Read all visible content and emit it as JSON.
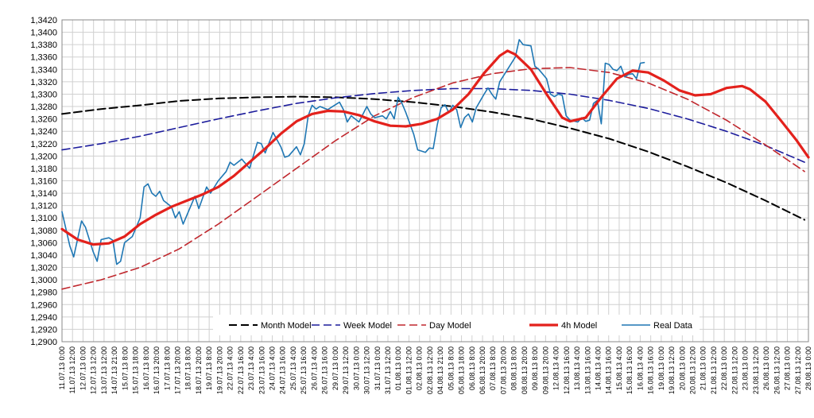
{
  "chart_data": {
    "type": "line",
    "title": "",
    "xlabel": "",
    "ylabel": "",
    "ylim": [
      1.29,
      1.342
    ],
    "grid": true,
    "legend_position": "bottom",
    "y_ticks": [
      "1,2900",
      "1,2920",
      "1,2940",
      "1,2960",
      "1,2980",
      "1,3000",
      "1,3020",
      "1,3040",
      "1,3060",
      "1,3080",
      "1,3100",
      "1,3120",
      "1,3140",
      "1,3160",
      "1,3180",
      "1,3200",
      "1,3220",
      "1,3240",
      "1,3260",
      "1,3280",
      "1,3300",
      "1,3320",
      "1,3340",
      "1,3360",
      "1,3380",
      "1,3400",
      "1,3420"
    ],
    "x_ticks": [
      "11.07.13 0:00",
      "11.07.13 12:00",
      "12.07.13 0:00",
      "12.07.13 12:00",
      "13.07.13 12:00",
      "14.07.13 21:00",
      "15.07.13 8:00",
      "15.07.13 18:00",
      "16.07.13 8:00",
      "16.07.13 20:00",
      "17.07.13 8:00",
      "17.07.13 20:00",
      "18.07.13 8:00",
      "18.07.13 20:00",
      "19.07.13 8:00",
      "19.07.13 20:00",
      "22.07.13 4:00",
      "22.07.13 16:00",
      "23.07.13 4:00",
      "23.07.13 16:00",
      "24.07.13 4:00",
      "24.07.13 16:00",
      "25.07.13 4:00",
      "25.07.13 16:00",
      "26.07.13 4:00",
      "26.07.13 16:00",
      "29.07.13 0:00",
      "29.07.13 12:00",
      "30.07.13 0:00",
      "30.07.13 12:00",
      "31.07.13 0:00",
      "31.07.13 12:00",
      "01.08.13 0:00",
      "01.08.13 12:00",
      "02.08.13 0:00",
      "02.08.13 12:00",
      "04.08.13 21:00",
      "05.08.13 8:00",
      "05.08.13 18:00",
      "06.08.13 8:00",
      "06.08.13 20:00",
      "07.08.13 8:00",
      "07.08.13 20:00",
      "08.08.13 8:00",
      "08.08.13 20:00",
      "09.08.13 8:00",
      "09.08.13 20:00",
      "12.08.13 4:00",
      "12.08.13 16:00",
      "13.08.13 4:00",
      "13.08.13 16:00",
      "14.08.13 4:00",
      "14.08.13 16:00",
      "15.08.13 4:00",
      "15.08.13 16:00",
      "16.08.13 4:00",
      "16.08.13 16:00",
      "19.08.13 0:00",
      "19.08.13 12:00",
      "20.08.13 0:00",
      "20.08.13 12:00",
      "21.08.13 0:00",
      "21.08.13 12:00",
      "22.08.13 0:00",
      "22.08.13 12:00",
      "23.08.13 0:00",
      "23.08.13 12:00",
      "26.08.13 0:00",
      "26.08.13 12:00",
      "27.08.13 0:00",
      "27.08.13 12:00",
      "28.08.13 0:00"
    ],
    "series": [
      {
        "name": "Month Model",
        "color": "#000000",
        "dash": "10,5",
        "width": 2,
        "points": [
          [
            0,
            1.3268
          ],
          [
            5,
            1.3276
          ],
          [
            10,
            1.3282
          ],
          [
            15,
            1.3289
          ],
          [
            20,
            1.3293
          ],
          [
            25,
            1.3295
          ],
          [
            30,
            1.3296
          ],
          [
            35,
            1.3295
          ],
          [
            40,
            1.3292
          ],
          [
            45,
            1.3287
          ],
          [
            50,
            1.328
          ],
          [
            55,
            1.3271
          ],
          [
            60,
            1.326
          ],
          [
            65,
            1.3245
          ],
          [
            70,
            1.3228
          ],
          [
            75,
            1.3207
          ],
          [
            80,
            1.3183
          ],
          [
            85,
            1.3157
          ],
          [
            90,
            1.3128
          ],
          [
            95,
            1.3097
          ]
        ]
      },
      {
        "name": "Week Model",
        "color": "#1c1c9c",
        "dash": "10,5",
        "width": 1.6,
        "points": [
          [
            0,
            1.321
          ],
          [
            5,
            1.322
          ],
          [
            10,
            1.3232
          ],
          [
            15,
            1.3246
          ],
          [
            20,
            1.326
          ],
          [
            25,
            1.3273
          ],
          [
            30,
            1.3285
          ],
          [
            35,
            1.3294
          ],
          [
            40,
            1.3301
          ],
          [
            45,
            1.3306
          ],
          [
            50,
            1.3309
          ],
          [
            55,
            1.3309
          ],
          [
            60,
            1.3306
          ],
          [
            65,
            1.33
          ],
          [
            70,
            1.329
          ],
          [
            75,
            1.3277
          ],
          [
            80,
            1.326
          ],
          [
            85,
            1.324
          ],
          [
            90,
            1.3217
          ],
          [
            95,
            1.319
          ]
        ]
      },
      {
        "name": "Day Model",
        "color": "#c0272d",
        "dash": "10,5",
        "width": 1.6,
        "points": [
          [
            0,
            1.2985
          ],
          [
            5,
            1.3
          ],
          [
            10,
            1.302
          ],
          [
            15,
            1.305
          ],
          [
            20,
            1.309
          ],
          [
            25,
            1.3135
          ],
          [
            30,
            1.318
          ],
          [
            35,
            1.3225
          ],
          [
            40,
            1.3265
          ],
          [
            45,
            1.3295
          ],
          [
            50,
            1.3318
          ],
          [
            55,
            1.3333
          ],
          [
            60,
            1.3341
          ],
          [
            65,
            1.3343
          ],
          [
            70,
            1.3335
          ],
          [
            75,
            1.3318
          ],
          [
            80,
            1.3292
          ],
          [
            85,
            1.3258
          ],
          [
            90,
            1.3218
          ],
          [
            95,
            1.3175
          ]
        ]
      },
      {
        "name": "4h Model",
        "color": "#e3211c",
        "dash": "",
        "width": 3.2,
        "points": [
          [
            0,
            1.3082
          ],
          [
            2,
            1.3065
          ],
          [
            4,
            1.3057
          ],
          [
            6,
            1.3059
          ],
          [
            8,
            1.307
          ],
          [
            10,
            1.309
          ],
          [
            12,
            1.3105
          ],
          [
            14,
            1.3118
          ],
          [
            16,
            1.3128
          ],
          [
            18,
            1.3138
          ],
          [
            20,
            1.315
          ],
          [
            22,
            1.3168
          ],
          [
            24,
            1.319
          ],
          [
            26,
            1.3212
          ],
          [
            28,
            1.3236
          ],
          [
            30,
            1.3256
          ],
          [
            32,
            1.3268
          ],
          [
            34,
            1.3273
          ],
          [
            36,
            1.3272
          ],
          [
            38,
            1.3266
          ],
          [
            40,
            1.3256
          ],
          [
            42,
            1.3249
          ],
          [
            44,
            1.3248
          ],
          [
            46,
            1.3252
          ],
          [
            48,
            1.326
          ],
          [
            50,
            1.3275
          ],
          [
            52,
            1.33
          ],
          [
            54,
            1.3334
          ],
          [
            56,
            1.3362
          ],
          [
            57,
            1.337
          ],
          [
            58,
            1.3364
          ],
          [
            60,
            1.334
          ],
          [
            62,
            1.33
          ],
          [
            64,
            1.3262
          ],
          [
            65,
            1.3256
          ],
          [
            67,
            1.3262
          ],
          [
            69,
            1.3295
          ],
          [
            71,
            1.3325
          ],
          [
            73,
            1.3338
          ],
          [
            75,
            1.3335
          ],
          [
            77,
            1.3322
          ],
          [
            79,
            1.3306
          ],
          [
            81,
            1.3298
          ],
          [
            83,
            1.33
          ],
          [
            85,
            1.331
          ],
          [
            87,
            1.3313
          ],
          [
            88,
            1.3308
          ],
          [
            90,
            1.3288
          ],
          [
            92,
            1.3257
          ],
          [
            94,
            1.3225
          ],
          [
            95.5,
            1.3198
          ]
        ]
      },
      {
        "name": "Real Data",
        "color": "#1f77b4",
        "dash": "",
        "width": 1.6,
        "points": [
          [
            0,
            1.311
          ],
          [
            1,
            1.3055
          ],
          [
            1.5,
            1.3037
          ],
          [
            2.5,
            1.3095
          ],
          [
            3,
            1.3085
          ],
          [
            4,
            1.3045
          ],
          [
            4.5,
            1.303
          ],
          [
            5,
            1.3065
          ],
          [
            6,
            1.3068
          ],
          [
            6.5,
            1.3064
          ],
          [
            7,
            1.3025
          ],
          [
            7.5,
            1.303
          ],
          [
            8,
            1.306
          ],
          [
            9,
            1.307
          ],
          [
            10,
            1.31
          ],
          [
            10.5,
            1.315
          ],
          [
            11,
            1.3155
          ],
          [
            11.5,
            1.314
          ],
          [
            12,
            1.3135
          ],
          [
            12.5,
            1.3143
          ],
          [
            13,
            1.3128
          ],
          [
            14,
            1.3118
          ],
          [
            14.5,
            1.31
          ],
          [
            15,
            1.311
          ],
          [
            15.5,
            1.309
          ],
          [
            16,
            1.3105
          ],
          [
            17,
            1.3135
          ],
          [
            17.5,
            1.3115
          ],
          [
            18.5,
            1.315
          ],
          [
            19,
            1.314
          ],
          [
            20,
            1.316
          ],
          [
            21,
            1.3175
          ],
          [
            21.5,
            1.319
          ],
          [
            22,
            1.3185
          ],
          [
            23,
            1.3195
          ],
          [
            24,
            1.318
          ],
          [
            25,
            1.3222
          ],
          [
            25.5,
            1.322
          ],
          [
            26,
            1.3205
          ],
          [
            27,
            1.3238
          ],
          [
            28,
            1.3215
          ],
          [
            28.5,
            1.3198
          ],
          [
            29,
            1.32
          ],
          [
            30,
            1.3215
          ],
          [
            30.5,
            1.3202
          ],
          [
            31,
            1.322
          ],
          [
            31.5,
            1.3265
          ],
          [
            32,
            1.3282
          ],
          [
            32.5,
            1.3276
          ],
          [
            33,
            1.328
          ],
          [
            34,
            1.3275
          ],
          [
            35,
            1.3283
          ],
          [
            35.5,
            1.3287
          ],
          [
            36,
            1.3275
          ],
          [
            36.5,
            1.3255
          ],
          [
            37,
            1.3265
          ],
          [
            38,
            1.3255
          ],
          [
            39,
            1.328
          ],
          [
            39.5,
            1.3268
          ],
          [
            40,
            1.3262
          ],
          [
            41,
            1.3265
          ],
          [
            41.5,
            1.326
          ],
          [
            42,
            1.3272
          ],
          [
            42.5,
            1.326
          ],
          [
            43,
            1.3295
          ],
          [
            43.5,
            1.3285
          ],
          [
            44,
            1.327
          ],
          [
            45,
            1.3235
          ],
          [
            45.5,
            1.321
          ],
          [
            46,
            1.3208
          ],
          [
            46.5,
            1.3206
          ],
          [
            47,
            1.3213
          ],
          [
            47.5,
            1.3212
          ],
          [
            48,
            1.325
          ],
          [
            48.5,
            1.3278
          ],
          [
            49,
            1.3283
          ],
          [
            49.5,
            1.327
          ],
          [
            50,
            1.3282
          ],
          [
            50.5,
            1.3275
          ],
          [
            51,
            1.3246
          ],
          [
            51.5,
            1.3262
          ],
          [
            52,
            1.3268
          ],
          [
            52.5,
            1.3255
          ],
          [
            53,
            1.3278
          ],
          [
            54,
            1.33
          ],
          [
            54.5,
            1.331
          ],
          [
            55,
            1.33
          ],
          [
            55.5,
            1.3292
          ],
          [
            56,
            1.332
          ],
          [
            57,
            1.334
          ],
          [
            58,
            1.336
          ],
          [
            58.5,
            1.3388
          ],
          [
            59,
            1.338
          ],
          [
            60,
            1.3378
          ],
          [
            60.5,
            1.3345
          ],
          [
            61,
            1.334
          ],
          [
            62,
            1.3325
          ],
          [
            62.5,
            1.33
          ],
          [
            63,
            1.3296
          ],
          [
            63.5,
            1.33
          ],
          [
            64,
            1.3298
          ],
          [
            64.5,
            1.3265
          ],
          [
            65,
            1.3258
          ],
          [
            66,
            1.3255
          ],
          [
            66.5,
            1.3262
          ],
          [
            67,
            1.3256
          ],
          [
            67.5,
            1.3258
          ],
          [
            68,
            1.3285
          ],
          [
            68.5,
            1.329
          ],
          [
            69,
            1.3252
          ],
          [
            69.5,
            1.335
          ],
          [
            70,
            1.3348
          ],
          [
            70.5,
            1.334
          ],
          [
            71,
            1.3338
          ],
          [
            71.5,
            1.3345
          ],
          [
            72,
            1.3328
          ],
          [
            72.5,
            1.3332
          ],
          [
            73,
            1.3333
          ],
          [
            73.5,
            1.3325
          ],
          [
            74,
            1.335
          ],
          [
            74.5,
            1.3351
          ]
        ]
      }
    ]
  }
}
